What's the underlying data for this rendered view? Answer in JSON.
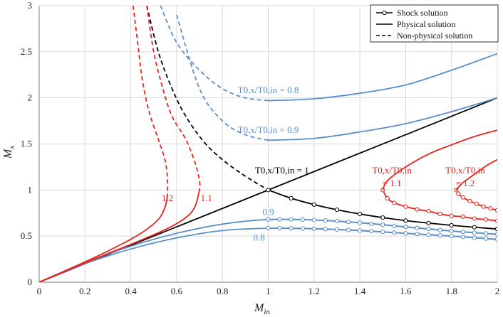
{
  "chart_data": {
    "type": "line",
    "xlabel": "M_in",
    "ylabel": "M_x",
    "xlim": [
      0,
      2
    ],
    "ylim": [
      0,
      3
    ],
    "xticks": [
      "0",
      "0.2",
      "0.4",
      "0.6",
      "0.8",
      "1",
      "1.2",
      "1.4",
      "1.6",
      "1.8",
      "2"
    ],
    "yticks": [
      "0",
      "0.5",
      "1",
      "1.5",
      "2",
      "2.5",
      "3"
    ],
    "grid": true,
    "legend_position": "top-right",
    "legend": [
      {
        "label": "Shock solution",
        "style": "marker"
      },
      {
        "label": "Physical solution",
        "style": "solid"
      },
      {
        "label": "Non-physical solution",
        "style": "dashed"
      }
    ],
    "colors": {
      "blue": "#5b8fc9",
      "red": "#e8231d",
      "black": "#000000",
      "grid": "#d9d9d9",
      "axis": "#7f7f7f"
    },
    "series": [
      {
        "name": "diagonal Mx = Min",
        "color": "black",
        "style": "solid",
        "points": [
          [
            0,
            0
          ],
          [
            2,
            2
          ]
        ]
      },
      {
        "name": "T0x/T0in = 1 non-physical",
        "color": "black",
        "style": "dashed",
        "points": [
          [
            0.47,
            3.0
          ],
          [
            0.52,
            2.5
          ],
          [
            0.58,
            2.1
          ],
          [
            0.64,
            1.8
          ],
          [
            0.72,
            1.52
          ],
          [
            0.8,
            1.33
          ],
          [
            0.9,
            1.15
          ],
          [
            1.0,
            1.0
          ]
        ]
      },
      {
        "name": "T0x/T0in = 1 shock",
        "color": "black",
        "style": "marker",
        "points": [
          [
            1.0,
            1.0
          ],
          [
            1.1,
            0.911
          ],
          [
            1.2,
            0.842
          ],
          [
            1.3,
            0.786
          ],
          [
            1.4,
            0.74
          ],
          [
            1.5,
            0.701
          ],
          [
            1.6,
            0.668
          ],
          [
            1.7,
            0.641
          ],
          [
            1.8,
            0.617
          ],
          [
            1.9,
            0.596
          ],
          [
            2.0,
            0.577
          ]
        ]
      },
      {
        "name": "0.8 physical",
        "color": "blue",
        "style": "solid",
        "points": [
          [
            0,
            0
          ],
          [
            0.2,
            0.2
          ],
          [
            0.4,
            0.36
          ],
          [
            0.6,
            0.48
          ],
          [
            0.8,
            0.56
          ],
          [
            1.0,
            0.585
          ],
          [
            1.2,
            0.58
          ],
          [
            1.4,
            0.56
          ],
          [
            1.6,
            0.53
          ],
          [
            1.8,
            0.5
          ],
          [
            2.0,
            0.465
          ]
        ]
      },
      {
        "name": "0.8 shock",
        "color": "blue",
        "style": "marker",
        "points": [
          [
            1.0,
            0.585
          ],
          [
            1.05,
            0.585
          ],
          [
            1.1,
            0.584
          ],
          [
            1.15,
            0.582
          ],
          [
            1.2,
            0.58
          ],
          [
            1.25,
            0.576
          ],
          [
            1.3,
            0.571
          ],
          [
            1.35,
            0.566
          ],
          [
            1.4,
            0.56
          ],
          [
            1.45,
            0.553
          ],
          [
            1.5,
            0.546
          ],
          [
            1.55,
            0.538
          ],
          [
            1.6,
            0.53
          ],
          [
            1.65,
            0.522
          ],
          [
            1.7,
            0.515
          ],
          [
            1.75,
            0.507
          ],
          [
            1.8,
            0.5
          ],
          [
            1.85,
            0.491
          ],
          [
            1.9,
            0.482
          ],
          [
            1.95,
            0.473
          ],
          [
            2.0,
            0.465
          ]
        ]
      },
      {
        "name": "0.9 physical",
        "color": "blue",
        "style": "solid",
        "points": [
          [
            0,
            0
          ],
          [
            0.2,
            0.21
          ],
          [
            0.4,
            0.39
          ],
          [
            0.6,
            0.53
          ],
          [
            0.8,
            0.63
          ],
          [
            1.0,
            0.68
          ],
          [
            1.2,
            0.675
          ],
          [
            1.4,
            0.645
          ],
          [
            1.6,
            0.6
          ],
          [
            1.8,
            0.555
          ],
          [
            2.0,
            0.52
          ]
        ]
      },
      {
        "name": "0.9 shock",
        "color": "blue",
        "style": "marker",
        "points": [
          [
            1.0,
            0.68
          ],
          [
            1.05,
            0.681
          ],
          [
            1.1,
            0.681
          ],
          [
            1.15,
            0.679
          ],
          [
            1.2,
            0.675
          ],
          [
            1.25,
            0.669
          ],
          [
            1.3,
            0.662
          ],
          [
            1.35,
            0.654
          ],
          [
            1.4,
            0.645
          ],
          [
            1.45,
            0.634
          ],
          [
            1.5,
            0.623
          ],
          [
            1.55,
            0.611
          ],
          [
            1.6,
            0.6
          ],
          [
            1.65,
            0.589
          ],
          [
            1.7,
            0.578
          ],
          [
            1.75,
            0.566
          ],
          [
            1.8,
            0.555
          ],
          [
            1.85,
            0.546
          ],
          [
            1.9,
            0.537
          ],
          [
            1.95,
            0.528
          ],
          [
            2.0,
            0.52
          ]
        ]
      },
      {
        "name": "0.8 non-physical",
        "color": "blue",
        "style": "dashed",
        "points": [
          [
            0.53,
            3.0
          ],
          [
            0.6,
            2.6
          ],
          [
            0.7,
            2.3
          ],
          [
            0.8,
            2.1
          ],
          [
            0.9,
            2.0
          ],
          [
            1.0,
            1.97
          ]
        ]
      },
      {
        "name": "0.8 upper physical",
        "color": "blue",
        "style": "solid",
        "points": [
          [
            1.0,
            1.97
          ],
          [
            1.2,
            1.99
          ],
          [
            1.4,
            2.05
          ],
          [
            1.6,
            2.14
          ],
          [
            1.8,
            2.3
          ],
          [
            2.0,
            2.48
          ]
        ]
      },
      {
        "name": "0.9 non-physical",
        "color": "blue",
        "style": "dashed",
        "points": [
          [
            0.6,
            2.9
          ],
          [
            0.7,
            2.1
          ],
          [
            0.8,
            1.75
          ],
          [
            0.9,
            1.6
          ],
          [
            1.0,
            1.54
          ]
        ]
      },
      {
        "name": "0.9 upper physical",
        "color": "blue",
        "style": "solid",
        "points": [
          [
            1.0,
            1.54
          ],
          [
            1.2,
            1.56
          ],
          [
            1.4,
            1.63
          ],
          [
            1.6,
            1.72
          ],
          [
            1.8,
            1.85
          ],
          [
            2.0,
            2.0
          ]
        ]
      },
      {
        "name": "1.2 non-physical",
        "color": "red",
        "style": "dashed",
        "points": [
          [
            0.41,
            3.0
          ],
          [
            0.43,
            2.6
          ],
          [
            0.45,
            2.2
          ],
          [
            0.48,
            1.85
          ],
          [
            0.52,
            1.55
          ],
          [
            0.55,
            1.32
          ],
          [
            0.56,
            1.12
          ],
          [
            0.56,
            0.95
          ]
        ]
      },
      {
        "name": "1.2 physical",
        "color": "red",
        "style": "solid",
        "points": [
          [
            0,
            0
          ],
          [
            0.2,
            0.22
          ],
          [
            0.35,
            0.4
          ],
          [
            0.45,
            0.54
          ],
          [
            0.52,
            0.68
          ],
          [
            0.55,
            0.82
          ],
          [
            0.56,
            0.95
          ]
        ]
      },
      {
        "name": "1.1 non-physical",
        "color": "red",
        "style": "dashed",
        "points": [
          [
            0.47,
            3.0
          ],
          [
            0.5,
            2.5
          ],
          [
            0.54,
            2.1
          ],
          [
            0.58,
            1.8
          ],
          [
            0.64,
            1.55
          ],
          [
            0.68,
            1.3
          ],
          [
            0.7,
            1.1
          ],
          [
            0.7,
            1.0
          ]
        ]
      },
      {
        "name": "1.1 physical",
        "color": "red",
        "style": "solid",
        "points": [
          [
            0,
            0
          ],
          [
            0.2,
            0.21
          ],
          [
            0.4,
            0.41
          ],
          [
            0.55,
            0.57
          ],
          [
            0.64,
            0.7
          ],
          [
            0.68,
            0.82
          ],
          [
            0.7,
            1.0
          ]
        ]
      },
      {
        "name": "1.1 shock",
        "color": "red",
        "style": "marker",
        "points": [
          [
            1.5,
            1.0
          ],
          [
            1.52,
            0.91
          ],
          [
            1.55,
            0.86
          ],
          [
            1.6,
            0.82
          ],
          [
            1.65,
            0.79
          ],
          [
            1.7,
            0.77
          ],
          [
            1.75,
            0.74
          ],
          [
            1.8,
            0.72
          ],
          [
            1.85,
            0.71
          ],
          [
            1.9,
            0.69
          ],
          [
            1.95,
            0.68
          ],
          [
            2.0,
            0.665
          ]
        ]
      },
      {
        "name": "1.1 upper physical",
        "color": "red",
        "style": "solid",
        "points": [
          [
            1.5,
            1.0
          ],
          [
            1.52,
            1.1
          ],
          [
            1.6,
            1.25
          ],
          [
            1.7,
            1.39
          ],
          [
            1.8,
            1.49
          ],
          [
            1.9,
            1.58
          ],
          [
            2.0,
            1.65
          ]
        ]
      },
      {
        "name": "1.2 shock",
        "color": "red",
        "style": "marker",
        "points": [
          [
            1.82,
            1.0
          ],
          [
            1.83,
            0.96
          ],
          [
            1.85,
            0.92
          ],
          [
            1.88,
            0.88
          ],
          [
            1.91,
            0.85
          ],
          [
            1.94,
            0.82
          ],
          [
            1.97,
            0.8
          ],
          [
            2.0,
            0.78
          ]
        ]
      },
      {
        "name": "1.2 upper physical",
        "color": "red",
        "style": "solid",
        "points": [
          [
            1.82,
            1.0
          ],
          [
            1.85,
            1.08
          ],
          [
            1.9,
            1.17
          ],
          [
            1.95,
            1.26
          ],
          [
            2.0,
            1.33
          ]
        ]
      }
    ],
    "annotations": [
      {
        "text": "T0,x/T0,in = 0.8",
        "color": "blue",
        "x": 1.0,
        "y": 2.05
      },
      {
        "text": "T0,x/T0,in = 0.9",
        "color": "blue",
        "x": 1.0,
        "y": 1.62
      },
      {
        "text": "T0,x/T0,in = 1",
        "color": "black",
        "x": 1.06,
        "y": 1.18
      },
      {
        "text": "T0,x/T0,in",
        "color": "red",
        "x": 1.54,
        "y": 1.18
      },
      {
        "text": "= 1.1",
        "color": "red",
        "x": 1.54,
        "y": 1.04
      },
      {
        "text": "T0,x/T0,in",
        "color": "red",
        "x": 1.86,
        "y": 1.18
      },
      {
        "text": "= 1.2",
        "color": "red",
        "x": 1.86,
        "y": 1.04
      },
      {
        "text": "1.2",
        "color": "red",
        "x": 0.56,
        "y": 0.88
      },
      {
        "text": "1.1",
        "color": "red",
        "x": 0.73,
        "y": 0.88
      },
      {
        "text": "0.9",
        "color": "blue",
        "x": 1.0,
        "y": 0.73
      },
      {
        "text": "0.8",
        "color": "blue",
        "x": 0.96,
        "y": 0.45
      }
    ]
  }
}
